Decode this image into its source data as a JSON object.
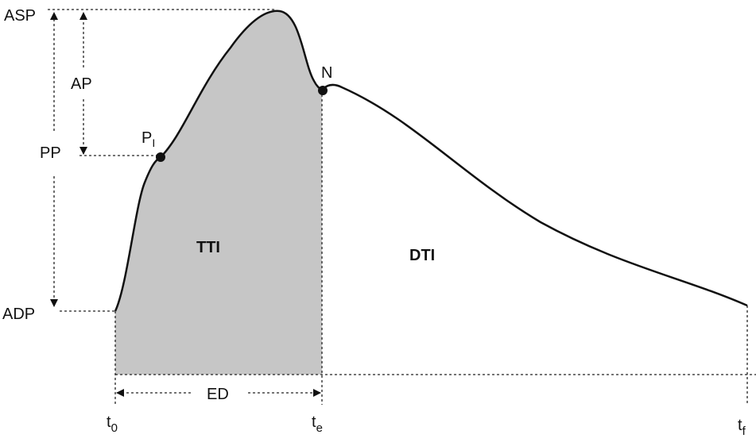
{
  "labels": {
    "asp": "ASP",
    "adp": "ADP",
    "ap": "AP",
    "pp": "PP",
    "pi": {
      "text": "P",
      "sub": "I"
    },
    "n": "N",
    "tti": "TTI",
    "dti": "DTI",
    "ed": "ED",
    "t0": {
      "text": "t",
      "sub": "0"
    },
    "te": {
      "text": "t",
      "sub": "e"
    },
    "tf": {
      "text": "t",
      "sub": "f"
    }
  }
}
